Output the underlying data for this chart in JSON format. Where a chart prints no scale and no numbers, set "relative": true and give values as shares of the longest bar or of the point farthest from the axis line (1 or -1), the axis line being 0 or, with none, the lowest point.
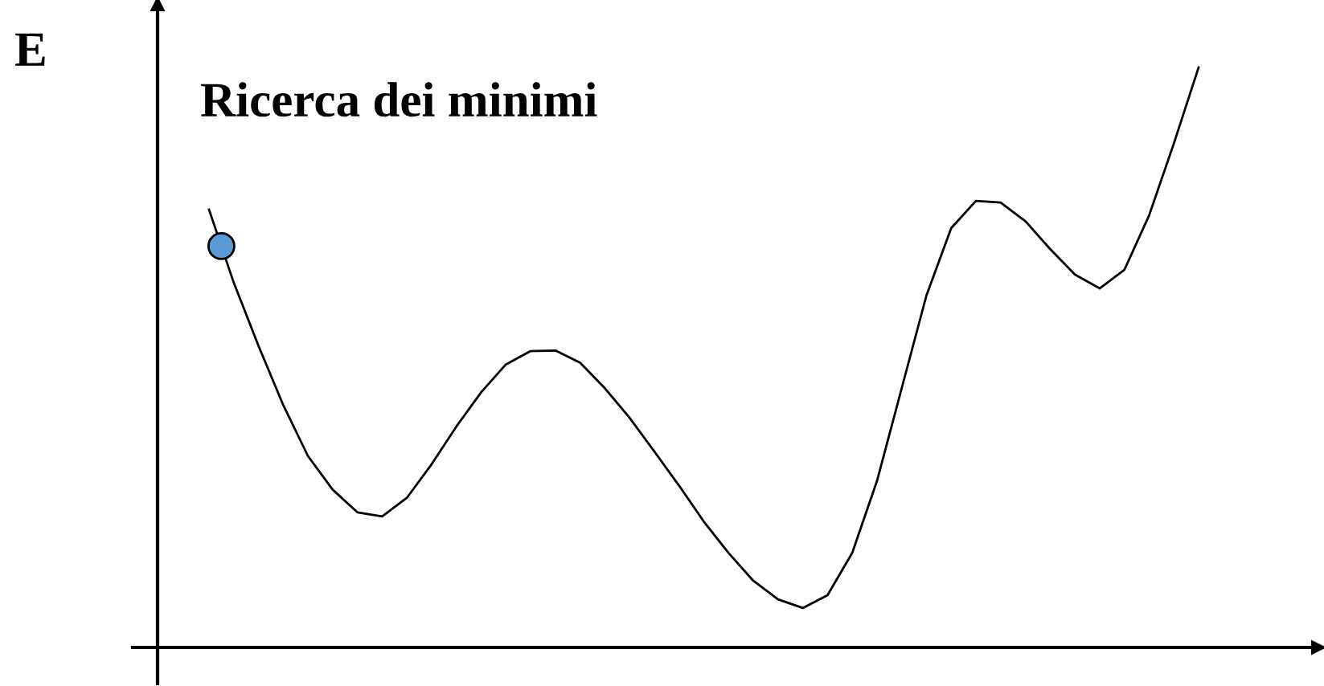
{
  "chart_data": {
    "type": "line",
    "title": "Ricerca dei minimi",
    "ylabel": "E",
    "relative": true,
    "grid": false,
    "color": "#000000",
    "marker": "none",
    "categories": [
      null,
      null,
      null,
      null,
      null,
      null,
      null,
      null,
      null,
      null,
      null,
      null,
      null,
      null,
      null,
      null,
      null,
      null,
      null,
      null,
      null,
      null,
      null,
      null,
      null,
      null,
      null,
      null,
      null,
      null,
      null,
      null,
      null,
      null,
      null,
      null,
      null,
      null,
      null,
      null,
      null
    ],
    "values": [
      0.755,
      0.629,
      0.52,
      0.418,
      0.33,
      0.272,
      0.233,
      0.226,
      0.258,
      0.316,
      0.381,
      0.44,
      0.488,
      0.511,
      0.512,
      0.491,
      0.447,
      0.396,
      0.338,
      0.279,
      0.217,
      0.163,
      0.115,
      0.083,
      0.068,
      0.09,
      0.163,
      0.287,
      0.447,
      0.607,
      0.723,
      0.77,
      0.767,
      0.735,
      0.687,
      0.643,
      0.619,
      0.651,
      0.745,
      0.869,
      1.0
    ]
  }
}
